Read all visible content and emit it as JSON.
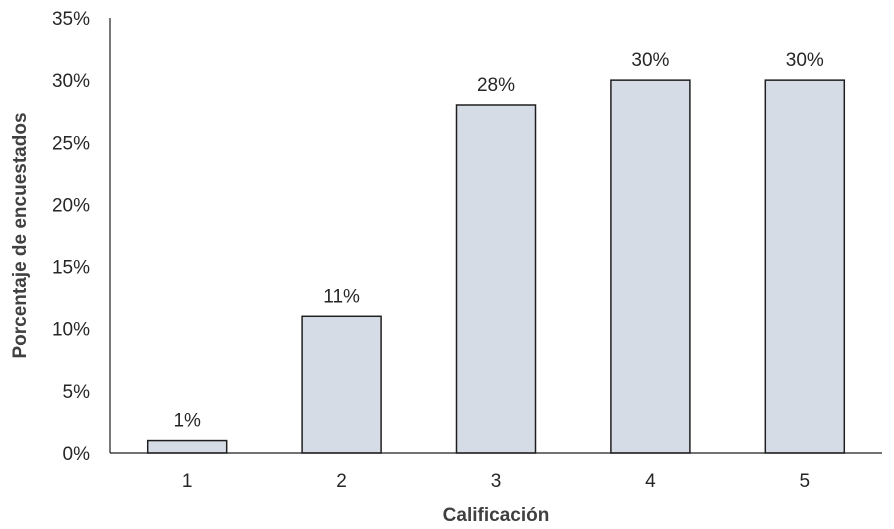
{
  "chart_data": {
    "type": "bar",
    "title": "",
    "xlabel": "Calificación",
    "ylabel": "Porcentaje de encuestados",
    "categories": [
      "1",
      "2",
      "3",
      "4",
      "5"
    ],
    "values": [
      1,
      11,
      28,
      30,
      30
    ],
    "value_labels": [
      "1%",
      "11%",
      "28%",
      "30%",
      "30%"
    ],
    "ylim": [
      0,
      35
    ],
    "yticks": [
      0,
      5,
      10,
      15,
      20,
      25,
      30,
      35
    ],
    "ytick_labels": [
      "0%",
      "5%",
      "10%",
      "15%",
      "20%",
      "25%",
      "30%",
      "35%"
    ],
    "grid": false,
    "legend": "none",
    "colors": {
      "bar_fill": "#d6dce5",
      "bar_stroke": "#1f1f1f",
      "axis": "#1f1f1f",
      "text": "#262626",
      "axis_title": "#404040"
    }
  }
}
